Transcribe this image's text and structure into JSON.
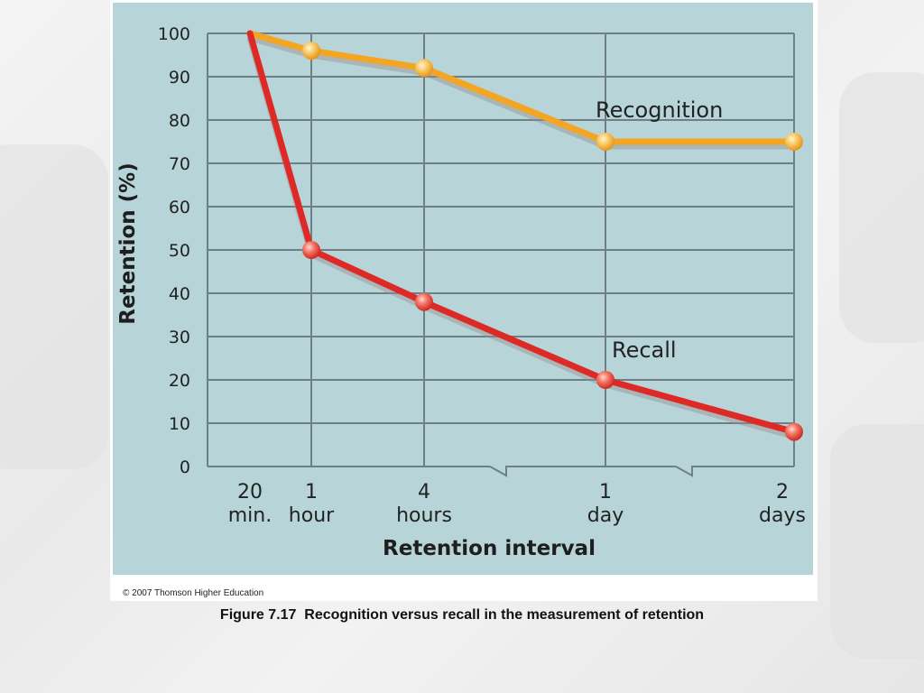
{
  "chart_data": {
    "type": "line",
    "title": "",
    "xlabel": "Retention interval",
    "ylabel": "Retention (%)",
    "ylim": [
      0,
      100
    ],
    "y_ticks": [
      "0",
      "10",
      "20",
      "30",
      "40",
      "50",
      "60",
      "70",
      "80",
      "90",
      "100"
    ],
    "categories": [
      {
        "top": "20",
        "bottom": "min."
      },
      {
        "top": "1",
        "bottom": "hour"
      },
      {
        "top": "4",
        "bottom": "hours"
      },
      {
        "top": "1",
        "bottom": "day"
      },
      {
        "top": "2",
        "bottom": "days"
      }
    ],
    "axis_breaks": "between 4 hours and 1 day; between 1 day and 2 days",
    "grid": true,
    "series": [
      {
        "name": "Recognition",
        "color": "#f2a623",
        "values": [
          100,
          96,
          92,
          75,
          75
        ]
      },
      {
        "name": "Recall",
        "color": "#de2a26",
        "values": [
          100,
          50,
          38,
          20,
          8
        ]
      }
    ]
  },
  "figure": {
    "copyright": "© 2007 Thomson Higher Education",
    "caption": "Figure 7.17  Recognition versus recall in the measurement of retention"
  }
}
